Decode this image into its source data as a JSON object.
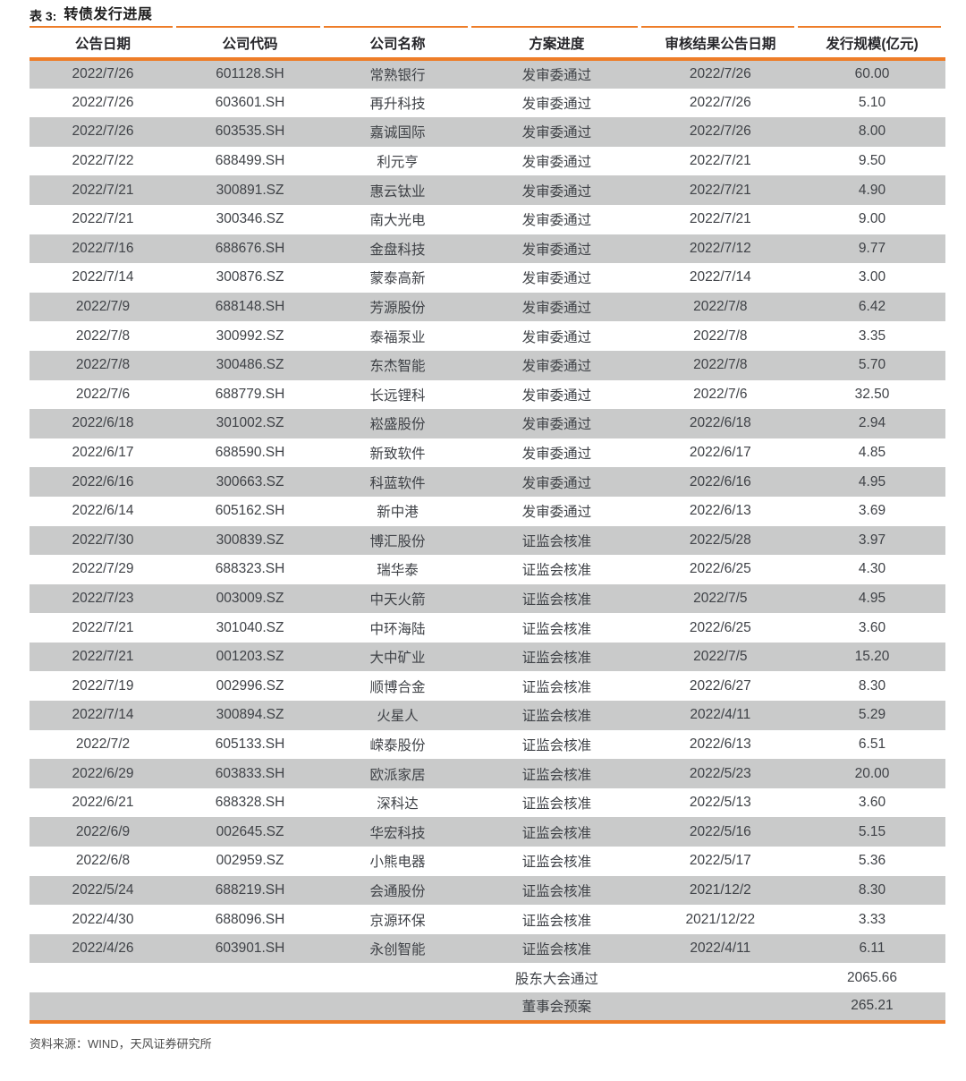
{
  "page": {
    "title_prefix": "表 3:",
    "title_text": "转债发行进展",
    "source": "资料来源：WIND，天风证券研究所"
  },
  "colors": {
    "accent_orange": "#EE7D28",
    "stripe_gray": "#C9CACA",
    "header_text": "#26262A",
    "body_text": "#3F4247"
  },
  "table": {
    "columns": [
      "公告日期",
      "公司代码",
      "公司名称",
      "方案进度",
      "审核结果公告日期",
      "发行规模(亿元)"
    ],
    "rows": [
      [
        "2022/7/26",
        "601128.SH",
        "常熟银行",
        "发审委通过",
        "2022/7/26",
        "60.00"
      ],
      [
        "2022/7/26",
        "603601.SH",
        "再升科技",
        "发审委通过",
        "2022/7/26",
        "5.10"
      ],
      [
        "2022/7/26",
        "603535.SH",
        "嘉诚国际",
        "发审委通过",
        "2022/7/26",
        "8.00"
      ],
      [
        "2022/7/22",
        "688499.SH",
        "利元亨",
        "发审委通过",
        "2022/7/21",
        "9.50"
      ],
      [
        "2022/7/21",
        "300891.SZ",
        "惠云钛业",
        "发审委通过",
        "2022/7/21",
        "4.90"
      ],
      [
        "2022/7/21",
        "300346.SZ",
        "南大光电",
        "发审委通过",
        "2022/7/21",
        "9.00"
      ],
      [
        "2022/7/16",
        "688676.SH",
        "金盘科技",
        "发审委通过",
        "2022/7/12",
        "9.77"
      ],
      [
        "2022/7/14",
        "300876.SZ",
        "蒙泰高新",
        "发审委通过",
        "2022/7/14",
        "3.00"
      ],
      [
        "2022/7/9",
        "688148.SH",
        "芳源股份",
        "发审委通过",
        "2022/7/8",
        "6.42"
      ],
      [
        "2022/7/8",
        "300992.SZ",
        "泰福泵业",
        "发审委通过",
        "2022/7/8",
        "3.35"
      ],
      [
        "2022/7/8",
        "300486.SZ",
        "东杰智能",
        "发审委通过",
        "2022/7/8",
        "5.70"
      ],
      [
        "2022/7/6",
        "688779.SH",
        "长远锂科",
        "发审委通过",
        "2022/7/6",
        "32.50"
      ],
      [
        "2022/6/18",
        "301002.SZ",
        "崧盛股份",
        "发审委通过",
        "2022/6/18",
        "2.94"
      ],
      [
        "2022/6/17",
        "688590.SH",
        "新致软件",
        "发审委通过",
        "2022/6/17",
        "4.85"
      ],
      [
        "2022/6/16",
        "300663.SZ",
        "科蓝软件",
        "发审委通过",
        "2022/6/16",
        "4.95"
      ],
      [
        "2022/6/14",
        "605162.SH",
        "新中港",
        "发审委通过",
        "2022/6/13",
        "3.69"
      ],
      [
        "2022/7/30",
        "300839.SZ",
        "博汇股份",
        "证监会核准",
        "2022/5/28",
        "3.97"
      ],
      [
        "2022/7/29",
        "688323.SH",
        "瑞华泰",
        "证监会核准",
        "2022/6/25",
        "4.30"
      ],
      [
        "2022/7/23",
        "003009.SZ",
        "中天火箭",
        "证监会核准",
        "2022/7/5",
        "4.95"
      ],
      [
        "2022/7/21",
        "301040.SZ",
        "中环海陆",
        "证监会核准",
        "2022/6/25",
        "3.60"
      ],
      [
        "2022/7/21",
        "001203.SZ",
        "大中矿业",
        "证监会核准",
        "2022/7/5",
        "15.20"
      ],
      [
        "2022/7/19",
        "002996.SZ",
        "顺博合金",
        "证监会核准",
        "2022/6/27",
        "8.30"
      ],
      [
        "2022/7/14",
        "300894.SZ",
        "火星人",
        "证监会核准",
        "2022/4/11",
        "5.29"
      ],
      [
        "2022/7/2",
        "605133.SH",
        "嵘泰股份",
        "证监会核准",
        "2022/6/13",
        "6.51"
      ],
      [
        "2022/6/29",
        "603833.SH",
        "欧派家居",
        "证监会核准",
        "2022/5/23",
        "20.00"
      ],
      [
        "2022/6/21",
        "688328.SH",
        "深科达",
        "证监会核准",
        "2022/5/13",
        "3.60"
      ],
      [
        "2022/6/9",
        "002645.SZ",
        "华宏科技",
        "证监会核准",
        "2022/5/16",
        "5.15"
      ],
      [
        "2022/6/8",
        "002959.SZ",
        "小熊电器",
        "证监会核准",
        "2022/5/17",
        "5.36"
      ],
      [
        "2022/5/24",
        "688219.SH",
        "会通股份",
        "证监会核准",
        "2021/12/2",
        "8.30"
      ],
      [
        "2022/4/30",
        "688096.SH",
        "京源环保",
        "证监会核准",
        "2021/12/22",
        "3.33"
      ],
      [
        "2022/4/26",
        "603901.SH",
        "永创智能",
        "证监会核准",
        "2022/4/11",
        "6.11"
      ],
      [
        "",
        "",
        "",
        "股东大会通过",
        "",
        "2065.66"
      ],
      [
        "",
        "",
        "",
        "董事会预案",
        "",
        "265.21"
      ]
    ]
  }
}
